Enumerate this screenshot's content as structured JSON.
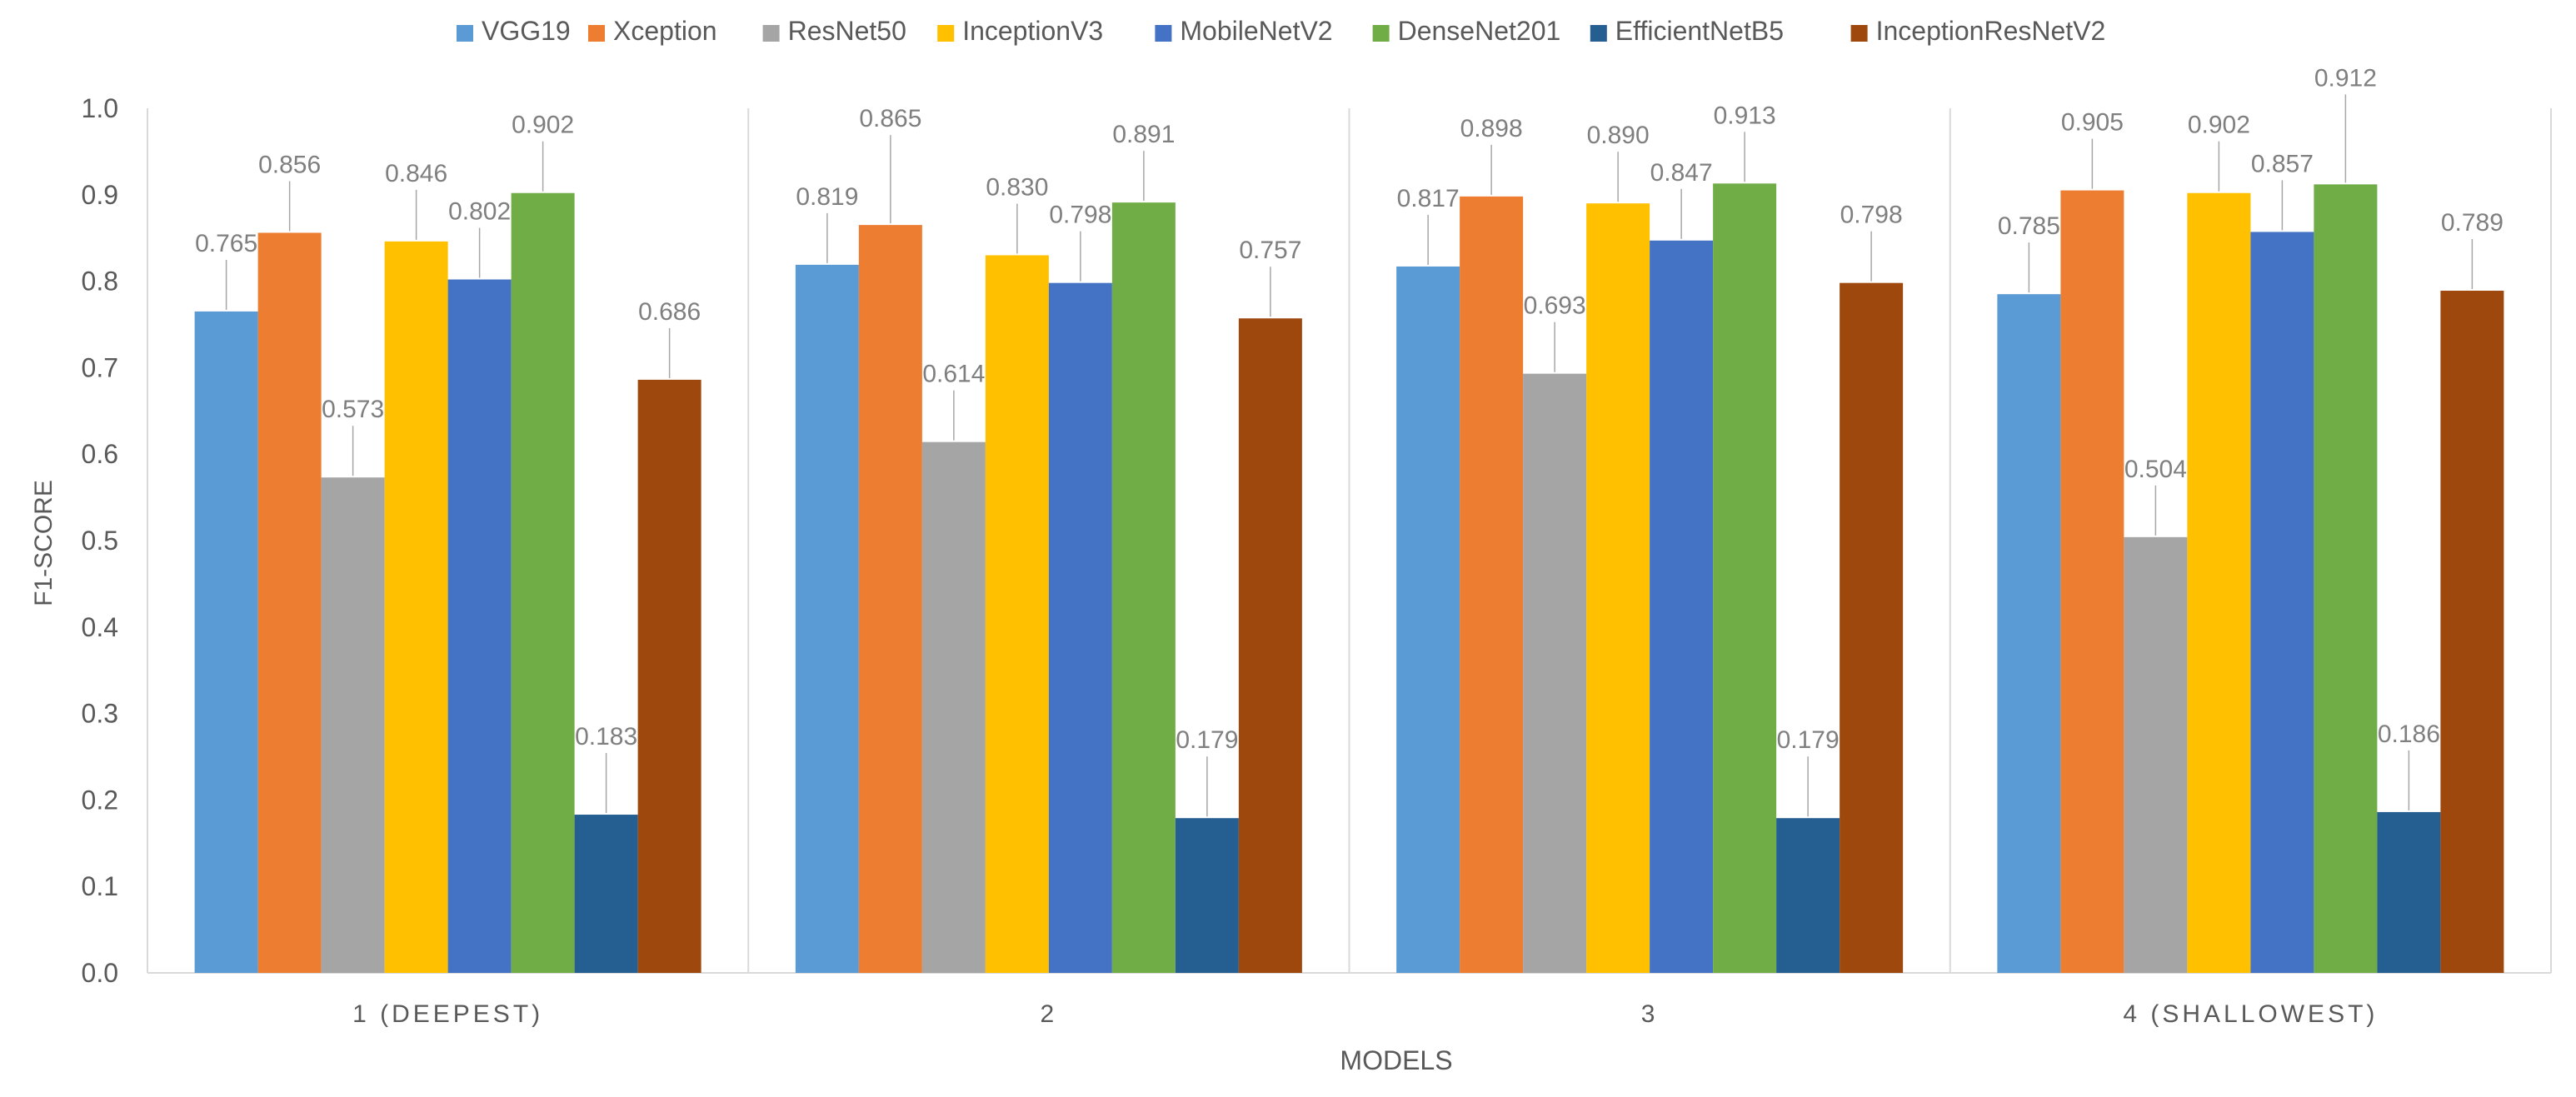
{
  "chart_data": {
    "type": "bar",
    "title": "",
    "xlabel": "MODELS",
    "ylabel": "F1-SCORE",
    "ylim": [
      0,
      1.0
    ],
    "yticks": [
      "0.0",
      "0.1",
      "0.2",
      "0.3",
      "0.4",
      "0.5",
      "0.6",
      "0.7",
      "0.8",
      "0.9",
      "1.0"
    ],
    "categories": [
      "1 (DEEPEST)",
      "2",
      "3",
      "4 (SHALLOWEST)"
    ],
    "legend_position": "top",
    "grid": false,
    "series": [
      {
        "name": "VGG19",
        "color": "#5B9BD5",
        "values": [
          0.765,
          0.819,
          0.817,
          0.785
        ],
        "labels": [
          "0.765",
          "0.819",
          "0.817",
          "0.785"
        ]
      },
      {
        "name": "Xception",
        "color": "#ED7D31",
        "values": [
          0.856,
          0.865,
          0.898,
          0.905
        ],
        "labels": [
          "0.856",
          "0.865",
          "0.898",
          "0.905"
        ]
      },
      {
        "name": "ResNet50",
        "color": "#A5A5A5",
        "values": [
          0.573,
          0.614,
          0.693,
          0.504
        ],
        "labels": [
          "0.573",
          "0.614",
          "0.693",
          "0.504"
        ]
      },
      {
        "name": "InceptionV3",
        "color": "#FFC000",
        "values": [
          0.846,
          0.83,
          0.89,
          0.902
        ],
        "labels": [
          "0.846",
          "0.830",
          "0.890",
          "0.902"
        ]
      },
      {
        "name": "MobileNetV2",
        "color": "#4472C4",
        "values": [
          0.802,
          0.798,
          0.847,
          0.857
        ],
        "labels": [
          "0.802",
          "0.798",
          "0.847",
          "0.857"
        ]
      },
      {
        "name": "DenseNet201",
        "color": "#70AD47",
        "values": [
          0.902,
          0.891,
          0.913,
          0.912
        ],
        "labels": [
          "0.902",
          "0.891",
          "0.913",
          "0.912"
        ]
      },
      {
        "name": "EfficientNetB5",
        "color": "#255E91",
        "values": [
          0.183,
          0.179,
          0.179,
          0.186
        ],
        "labels": [
          "0.183",
          "0.179",
          "0.179",
          "0.186"
        ]
      },
      {
        "name": "InceptionResNetV2",
        "color": "#9E480E",
        "values": [
          0.686,
          0.757,
          0.798,
          0.789
        ],
        "labels": [
          "0.686",
          "0.757",
          "0.798",
          "0.789"
        ]
      }
    ]
  }
}
